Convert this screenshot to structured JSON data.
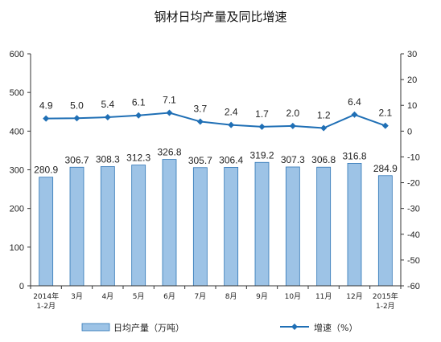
{
  "chart_data": {
    "type": "bar",
    "title": "钢材日均产量及同比增速",
    "categories": [
      [
        "2014年",
        "1-2月"
      ],
      [
        "3月"
      ],
      [
        "4月"
      ],
      [
        "5月"
      ],
      [
        "6月"
      ],
      [
        "7月"
      ],
      [
        "8月"
      ],
      [
        "9月"
      ],
      [
        "10月"
      ],
      [
        "11月"
      ],
      [
        "12月"
      ],
      [
        "2015年",
        "1-2月"
      ]
    ],
    "series": [
      {
        "name": "日均产量（万吨）",
        "type": "bar",
        "axis": "left",
        "color": "#9DC3E6",
        "values": [
          280.9,
          306.7,
          308.3,
          312.3,
          326.8,
          305.7,
          306.4,
          319.2,
          307.3,
          306.8,
          316.8,
          284.9
        ]
      },
      {
        "name": "增速（%）",
        "type": "line",
        "axis": "right",
        "color": "#1F6FB5",
        "values": [
          4.9,
          5.0,
          5.4,
          6.1,
          7.1,
          3.7,
          2.4,
          1.7,
          2.0,
          1.2,
          6.4,
          2.1
        ]
      }
    ],
    "y_left": {
      "min": 0,
      "max": 600,
      "ticks": [
        0,
        100,
        200,
        300,
        400,
        500,
        600
      ]
    },
    "y_right": {
      "min": -60,
      "max": 30,
      "ticks": [
        -60,
        -50,
        -40,
        -30,
        -20,
        -10,
        0,
        10,
        20,
        30
      ]
    },
    "legend": "bottom",
    "grid": false
  }
}
